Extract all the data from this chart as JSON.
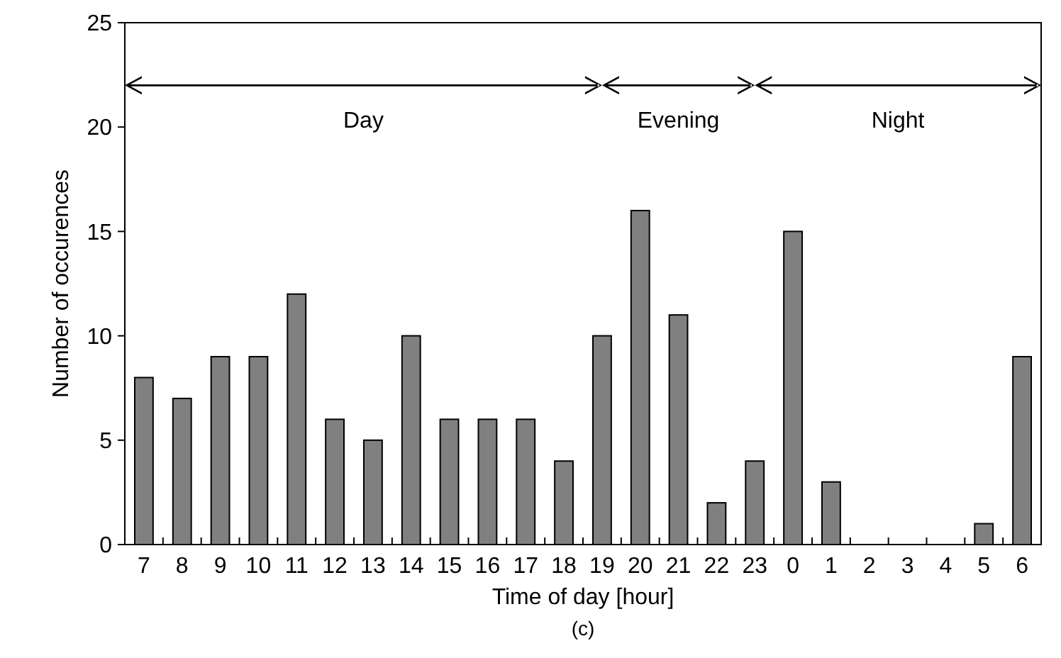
{
  "chart_data": {
    "type": "bar",
    "xlabel": "Time of day [hour]",
    "ylabel": "Number of occurences",
    "categories": [
      "7",
      "8",
      "9",
      "10",
      "11",
      "12",
      "13",
      "14",
      "15",
      "16",
      "17",
      "18",
      "19",
      "20",
      "21",
      "22",
      "23",
      "0",
      "1",
      "2",
      "3",
      "4",
      "5",
      "6"
    ],
    "values": [
      8,
      7,
      9,
      9,
      12,
      6,
      5,
      10,
      6,
      6,
      6,
      4,
      10,
      16,
      11,
      2,
      4,
      15,
      3,
      0,
      0,
      0,
      1,
      9
    ],
    "color": "#808080",
    "ylim": [
      0,
      25
    ],
    "yticks": [
      0,
      5,
      10,
      15,
      20,
      25
    ],
    "grid": false,
    "annotations": [
      "Day",
      "Evening",
      "Night",
      "(c)"
    ]
  }
}
